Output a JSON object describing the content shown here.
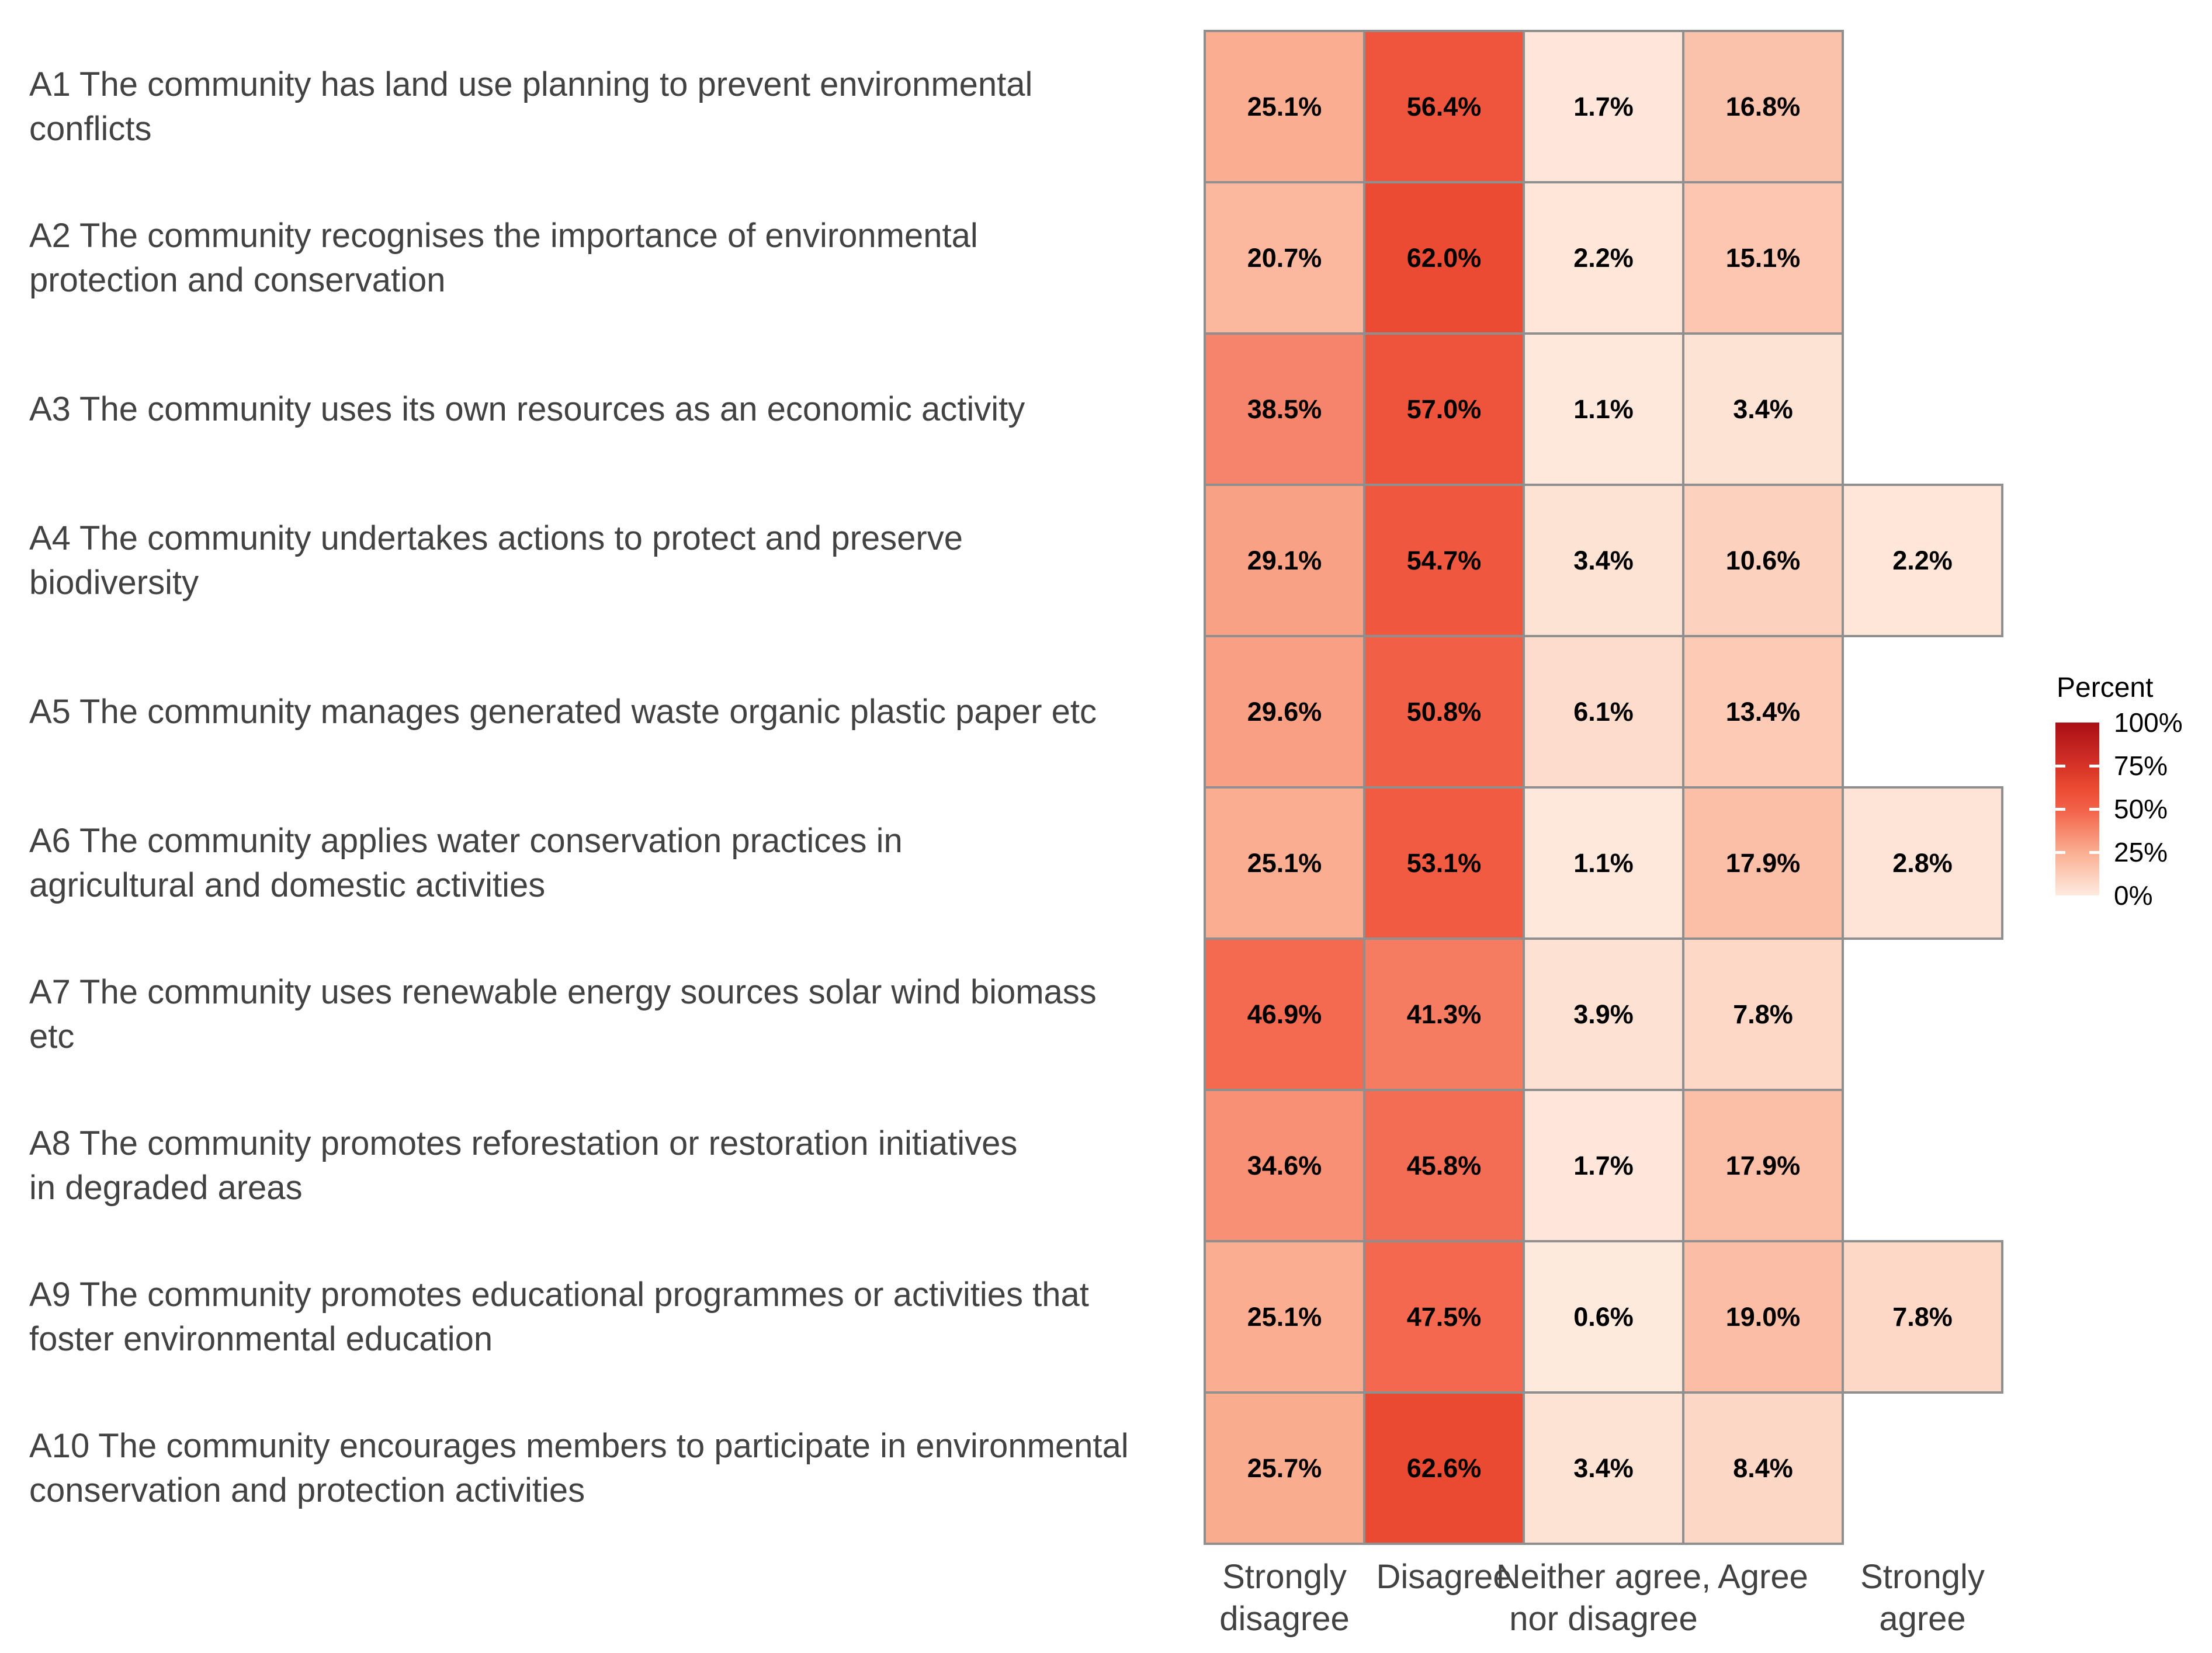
{
  "chart_data": {
    "type": "heatmap",
    "title": "",
    "xlabel": "",
    "ylabel": "",
    "grid": false,
    "legend_position": "right",
    "columns": [
      "Strongly\ndisagree",
      "Disagree",
      "Neither agree,\nnor disagree",
      "Agree",
      "Strongly\nagree"
    ],
    "rows": [
      {
        "label": "A1 The community has land use planning to prevent environmental\nconflicts",
        "cells": [
          {
            "v": 25.1,
            "label": "25.1%"
          },
          {
            "v": 56.4,
            "label": "56.4%"
          },
          {
            "v": 1.7,
            "label": "1.7%"
          },
          {
            "v": 16.8,
            "label": "16.8%"
          },
          null
        ]
      },
      {
        "label": "A2 The community recognises the importance of environmental\nprotection and conservation",
        "cells": [
          {
            "v": 20.7,
            "label": "20.7%"
          },
          {
            "v": 62.0,
            "label": "62.0%"
          },
          {
            "v": 2.2,
            "label": "2.2%"
          },
          {
            "v": 15.1,
            "label": "15.1%"
          },
          null
        ]
      },
      {
        "label": "A3 The community uses its own resources as an economic activity",
        "cells": [
          {
            "v": 38.5,
            "label": "38.5%"
          },
          {
            "v": 57.0,
            "label": "57.0%"
          },
          {
            "v": 1.1,
            "label": "1.1%"
          },
          {
            "v": 3.4,
            "label": "3.4%"
          },
          null
        ]
      },
      {
        "label": "A4 The community undertakes actions to protect and preserve\nbiodiversity",
        "cells": [
          {
            "v": 29.1,
            "label": "29.1%"
          },
          {
            "v": 54.7,
            "label": "54.7%"
          },
          {
            "v": 3.4,
            "label": "3.4%"
          },
          {
            "v": 10.6,
            "label": "10.6%"
          },
          {
            "v": 2.2,
            "label": "2.2%"
          }
        ]
      },
      {
        "label": "A5 The community manages generated waste organic plastic paper etc",
        "cells": [
          {
            "v": 29.6,
            "label": "29.6%"
          },
          {
            "v": 50.8,
            "label": "50.8%"
          },
          {
            "v": 6.1,
            "label": "6.1%"
          },
          {
            "v": 13.4,
            "label": "13.4%"
          },
          null
        ]
      },
      {
        "label": "A6 The community applies water conservation practices in\nagricultural and domestic activities",
        "cells": [
          {
            "v": 25.1,
            "label": "25.1%"
          },
          {
            "v": 53.1,
            "label": "53.1%"
          },
          {
            "v": 1.1,
            "label": "1.1%"
          },
          {
            "v": 17.9,
            "label": "17.9%"
          },
          {
            "v": 2.8,
            "label": "2.8%"
          }
        ]
      },
      {
        "label": "A7 The community uses renewable energy sources solar wind biomass\netc",
        "cells": [
          {
            "v": 46.9,
            "label": "46.9%"
          },
          {
            "v": 41.3,
            "label": "41.3%"
          },
          {
            "v": 3.9,
            "label": "3.9%"
          },
          {
            "v": 7.8,
            "label": "7.8%"
          },
          null
        ]
      },
      {
        "label": "A8 The community promotes reforestation or restoration initiatives\nin degraded areas",
        "cells": [
          {
            "v": 34.6,
            "label": "34.6%"
          },
          {
            "v": 45.8,
            "label": "45.8%"
          },
          {
            "v": 1.7,
            "label": "1.7%"
          },
          {
            "v": 17.9,
            "label": "17.9%"
          },
          null
        ]
      },
      {
        "label": "A9 The community promotes educational programmes or activities that\nfoster environmental education",
        "cells": [
          {
            "v": 25.1,
            "label": "25.1%"
          },
          {
            "v": 47.5,
            "label": "47.5%"
          },
          {
            "v": 0.6,
            "label": "0.6%"
          },
          {
            "v": 19.0,
            "label": "19.0%"
          },
          {
            "v": 7.8,
            "label": "7.8%"
          }
        ]
      },
      {
        "label": "A10 The community encourages members to participate in environmental\nconservation and protection activities",
        "cells": [
          {
            "v": 25.7,
            "label": "25.7%"
          },
          {
            "v": 62.6,
            "label": "62.6%"
          },
          {
            "v": 3.4,
            "label": "3.4%"
          },
          {
            "v": 8.4,
            "label": "8.4%"
          },
          null
        ]
      }
    ],
    "legend": {
      "title": "Percent",
      "tick_labels": [
        "100%",
        "75%",
        "50%",
        "25%",
        "0%"
      ],
      "range": [
        0,
        100
      ],
      "gradient_stops": [
        [
          0.0,
          "#FEEBDF"
        ],
        [
          0.25,
          "#FAAE91"
        ],
        [
          0.5,
          "#F26048"
        ],
        [
          0.625,
          "#EA4A31"
        ],
        [
          0.75,
          "#D63227"
        ],
        [
          1.0,
          "#A90F16"
        ]
      ]
    },
    "colors": {
      "background": "#FFFFFF",
      "cell_border": "#8F8F8F",
      "row_label_text": "#424242",
      "axis_label_text": "#424242",
      "cell_value_text": "#000000",
      "legend_text": "#000000"
    }
  }
}
